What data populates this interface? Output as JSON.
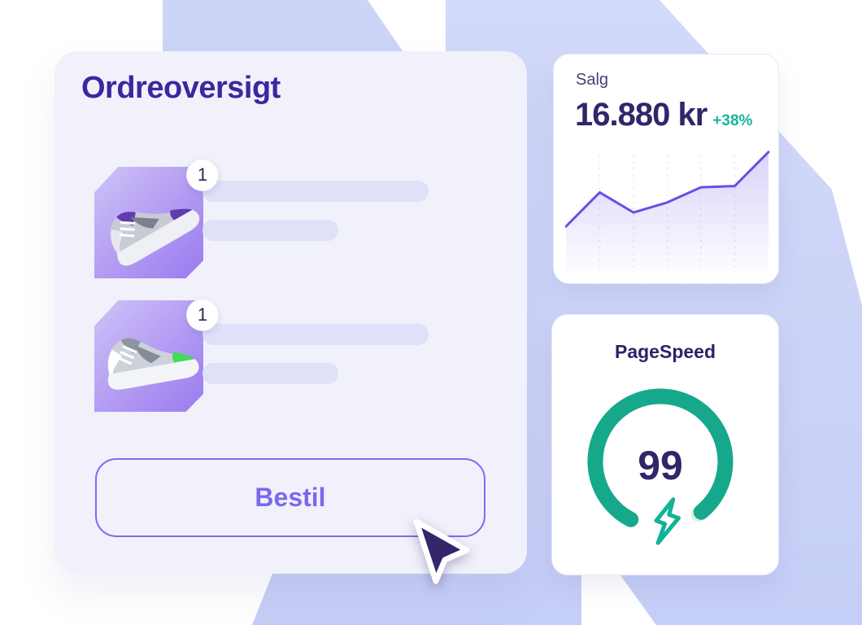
{
  "colors": {
    "bg_shape_a": "#ccd5f7",
    "bg_shape_b_top": "#d3d9f9",
    "bg_shape_b_bottom": "#c5cef6",
    "card_bg": "#f0f1fb",
    "accent_purple": "#7b68ee",
    "deep_purple": "#3b28a0",
    "indigo": "#2f2769",
    "teal": "#12b79b",
    "gauge_teal": "#16a88a",
    "gauge_remainder": "#d8efe7",
    "chart_line": "#6b4de7",
    "skeleton_bar": "#dee1f8"
  },
  "order_card": {
    "title": "Ordreoversigt",
    "button_label": "Bestil",
    "items": [
      {
        "quantity": "1",
        "image": "sneaker-purple-accent",
        "accent_color": "#5f3cb0",
        "collar_color": "#5f3cb0"
      },
      {
        "quantity": "1",
        "image": "sneaker-green-accent",
        "accent_color": "#3fdc55",
        "collar_color": "#8d95a3"
      }
    ]
  },
  "sales_card": {
    "label": "Salg",
    "value": "16.880 kr",
    "delta": "+38%",
    "chart": {
      "type": "area",
      "values": [
        36,
        63,
        47,
        55,
        67,
        68,
        95
      ],
      "value_scale_hint": "relative sales index, no axis labels shown",
      "gridline_count": 5,
      "line_color": "#6b4de7",
      "grid_on": true,
      "legend": "none"
    }
  },
  "pagespeed_card": {
    "title": "PageSpeed",
    "score": "99",
    "gauge_start_deg": 117,
    "gauge_span_deg": 297
  },
  "cursor": {
    "style": "arrow-pointer",
    "fill": "#35256b"
  }
}
